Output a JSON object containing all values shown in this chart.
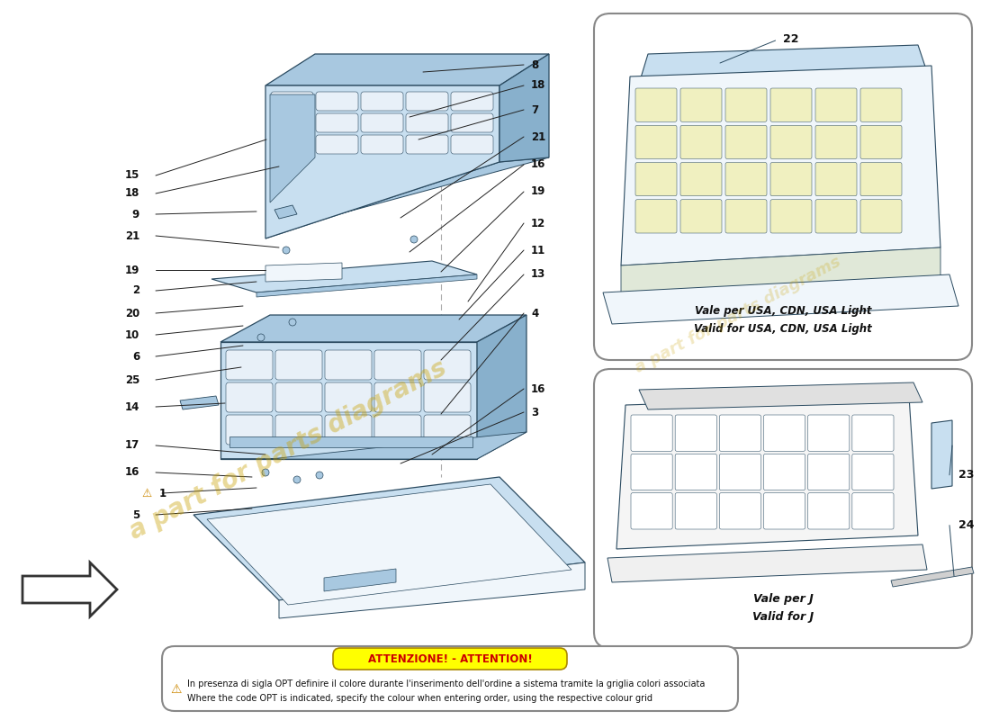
{
  "bg": "#ffffff",
  "part_blue_light": "#c8dff0",
  "part_blue_mid": "#a8c8e0",
  "part_blue_dark": "#88b0cc",
  "part_white": "#f0f6fb",
  "outline": "#2a4a60",
  "outline_thin": "#3a5a70",
  "yellow_cell": "#f0f0c0",
  "white_cell": "#e8f0f8",
  "arrow_color": "#222222",
  "label_color": "#111111",
  "watermark_color": "#c8a000",
  "watermark_alpha": 0.4,
  "attn_title": "ATTENZIONE! - ATTENTION!",
  "attn_title_color": "#cc0000",
  "attn_title_bg": "#ffff00",
  "attn_line1": "In presenza di sigla OPT definire il colore durante l'inserimento dell'ordine a sistema tramite la griglia colori associata",
  "attn_line2": "Where the code OPT is indicated, specify the colour when entering order, using the respective colour grid",
  "box1_caption_it": "Vale per USA, CDN, USA Light",
  "box1_caption_en": "Valid for USA, CDN, USA Light",
  "box2_caption_it": "Vale per J",
  "box2_caption_en": "Valid for J"
}
